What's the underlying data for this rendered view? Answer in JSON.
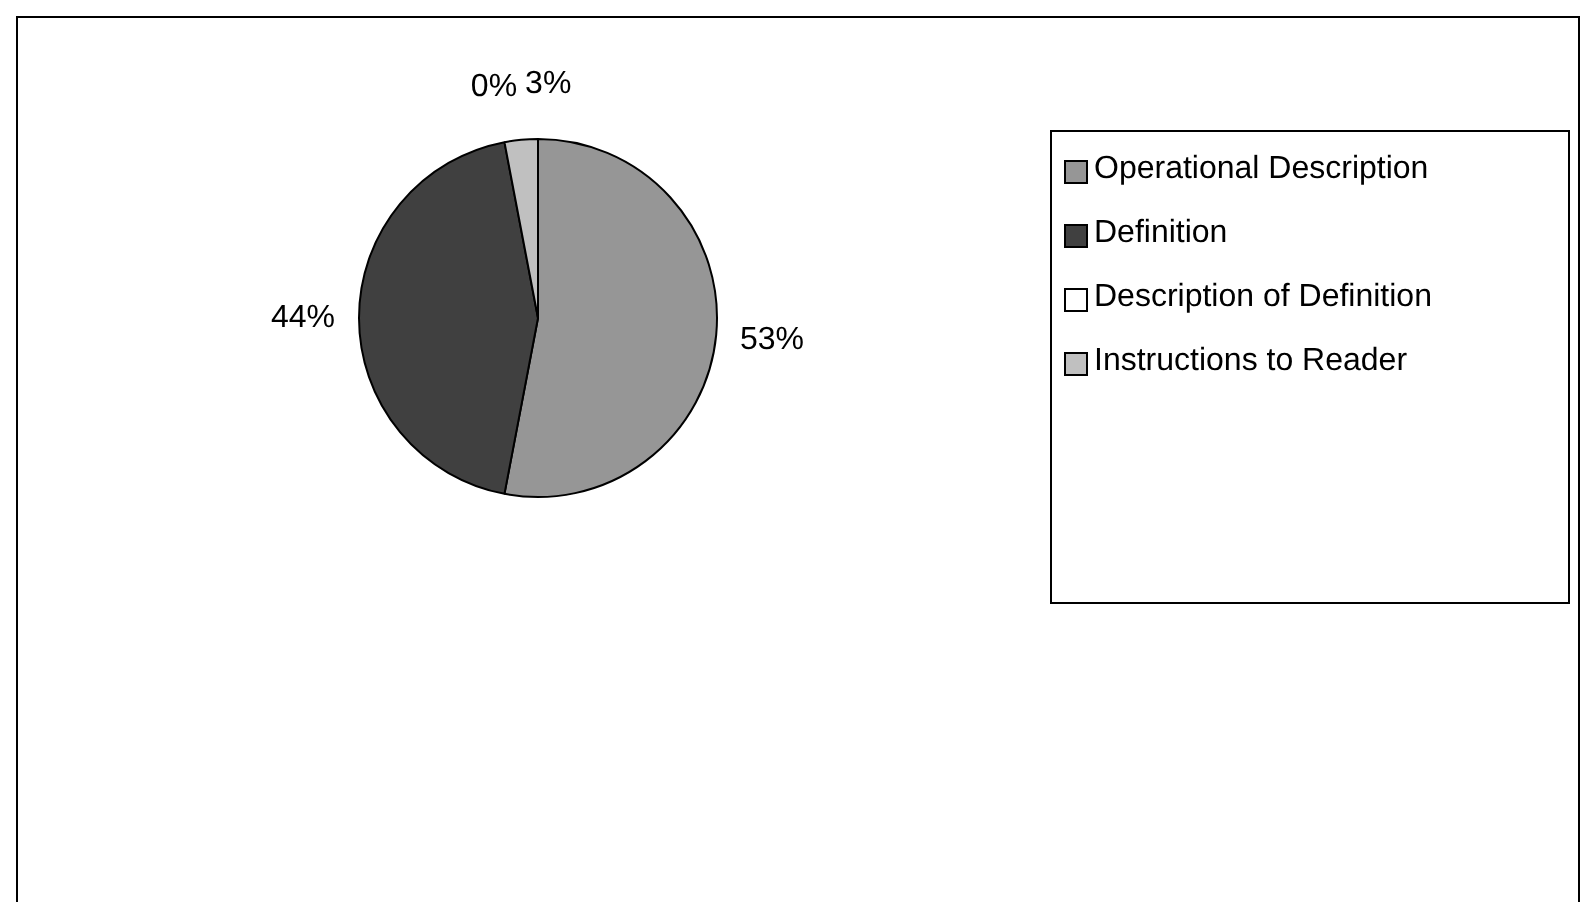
{
  "chart_data": {
    "type": "pie",
    "categories": [
      "Operational Description",
      "Definition",
      "Description of Definition",
      "Instructions to Reader"
    ],
    "values": [
      53,
      44,
      0,
      3
    ],
    "colors": [
      "#969696",
      "#404040",
      "#ffffff",
      "#c0c0c0"
    ],
    "value_labels": [
      "53%",
      "44%",
      "0%",
      "3%"
    ],
    "legend": "right"
  }
}
